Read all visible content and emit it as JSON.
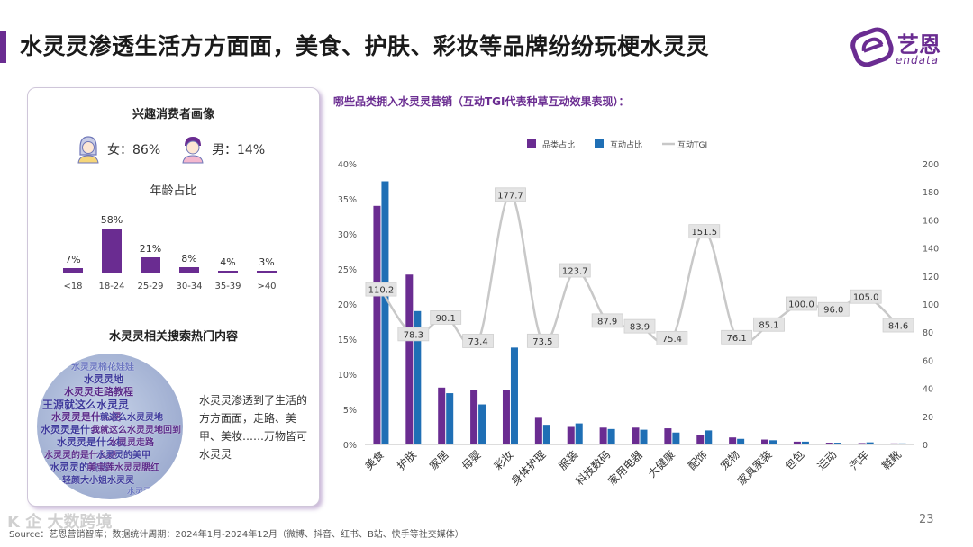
{
  "header": {
    "title": "水灵灵渗透生活方方面面，美食、护肤、彩妆等品牌纷纷玩梗水灵灵",
    "logo_cn": "艺恩",
    "logo_en": "endata"
  },
  "left": {
    "portrait_title": "兴趣消费者画像",
    "female_label": "女：86%",
    "male_label": "男：14%",
    "age_title": "年龄占比",
    "age_groups": [
      {
        "cat": "<18",
        "label": "7%",
        "value": 7
      },
      {
        "cat": "18-24",
        "label": "58%",
        "value": 58
      },
      {
        "cat": "25-29",
        "label": "21%",
        "value": 21
      },
      {
        "cat": "30-34",
        "label": "8%",
        "value": 8
      },
      {
        "cat": "35-39",
        "label": "4%",
        "value": 4
      },
      {
        "cat": ">40",
        "label": "3%",
        "value": 3
      }
    ],
    "search_title": "水灵灵相关搜索热门内容",
    "search_desc": "水灵灵渗透到了生活的方方面面，走路、美甲、美妆……万物皆可水灵灵",
    "wordcloud": [
      "水灵灵棉花娃娃",
      "水灵灵地",
      "水灵灵走路教程",
      "王源就这么水灵灵",
      "水灵灵是什么梗",
      "就这么水灵灵地",
      "水灵灵是什么",
      "我就这么水灵灵地回到",
      "水灵灵是什么梗",
      "水灵灵走路",
      "水灵灵的是什么梗",
      "水灵灵的美甲",
      "水灵灵的洗脚",
      "美宝莲水灵灵腮红",
      "轻颜大小姐水灵灵",
      "水灵灵",
      "水灵灵"
    ]
  },
  "chart_data": {
    "type": "bar",
    "title": "哪些品类拥入水灵灵营销（互动TGI代表种草互动效果表现）：",
    "categories": [
      "美食",
      "护肤",
      "家居",
      "母婴",
      "彩妆",
      "身体护理",
      "服装",
      "科技数码",
      "家用电器",
      "大健康",
      "配饰",
      "宠物",
      "家具家装",
      "包包",
      "运动",
      "汽车",
      "鞋靴"
    ],
    "series": [
      {
        "name": "品类占比",
        "axis": "left",
        "color": "#6a2c91",
        "values": [
          34.0,
          24.2,
          8.1,
          7.8,
          7.8,
          3.8,
          2.5,
          2.4,
          2.4,
          2.3,
          1.3,
          1.0,
          0.7,
          0.4,
          0.25,
          0.2,
          0.15
        ]
      },
      {
        "name": "互动占比",
        "axis": "left",
        "color": "#1f6fb5",
        "values": [
          37.5,
          19.0,
          7.3,
          5.7,
          13.8,
          2.8,
          3.0,
          2.2,
          2.1,
          1.7,
          2.0,
          0.8,
          0.6,
          0.4,
          0.25,
          0.3,
          0.15
        ]
      },
      {
        "name": "互动TGI",
        "axis": "right",
        "type": "line",
        "color": "#c8c8c8",
        "values": [
          110.2,
          78.3,
          90.1,
          73.4,
          177.7,
          73.5,
          123.7,
          87.9,
          83.9,
          75.4,
          151.5,
          76.1,
          85.1,
          100.0,
          96.0,
          105.0,
          84.6
        ]
      }
    ],
    "tgi_labels": [
      "110.2",
      "78.3",
      "90.1",
      "73.4",
      "177.7",
      "73.5",
      "123.7",
      "87.9",
      "83.9",
      "75.4",
      "151.5",
      "76.1",
      "85.1",
      "100.0",
      "96.0",
      "105.0",
      "84.6"
    ],
    "y_left": {
      "min": 0,
      "max": 40,
      "ticks": [
        "0%",
        "5%",
        "10%",
        "15%",
        "20%",
        "25%",
        "30%",
        "35%",
        "40%"
      ]
    },
    "y_right": {
      "min": 0,
      "max": 200,
      "ticks": [
        "0",
        "20",
        "40",
        "60",
        "80",
        "100",
        "120",
        "140",
        "160",
        "180",
        "200"
      ]
    },
    "legend": [
      "品类占比",
      "互动占比",
      "互动TGI"
    ]
  },
  "footer": {
    "source": "Source：艺恩营销智库；数据统计周期：2024年1月-2024年12月（微博、抖音、红书、B站、快手等社交媒体）",
    "page": "23",
    "watermark": "K 企 大数跨境"
  },
  "colors": {
    "purple": "#6a2c91",
    "blue": "#1f6fb5",
    "line": "#c8c8c8"
  }
}
